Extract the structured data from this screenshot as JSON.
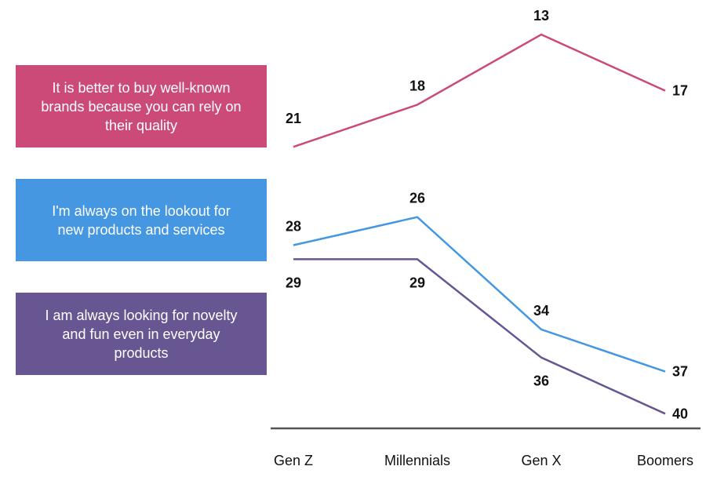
{
  "chart_data": {
    "type": "line",
    "categories": [
      "Gen Z",
      "Millennials",
      "Gen X",
      "Boomers"
    ],
    "y_inverted": true,
    "ylim": [
      13,
      40
    ],
    "grid": false,
    "legend": "left",
    "series": [
      {
        "name": "It is better to buy well-known brands because you can rely on their quality",
        "color": "#CB4A78",
        "values": [
          21,
          18,
          13,
          17
        ]
      },
      {
        "name": "I'm always on the lookout for new products and services",
        "color": "#4597E1",
        "values": [
          28,
          26,
          34,
          37
        ]
      },
      {
        "name": "I am always looking for novelty and fun even in everyday products",
        "color": "#675692",
        "values": [
          29,
          29,
          36,
          40
        ]
      }
    ]
  }
}
